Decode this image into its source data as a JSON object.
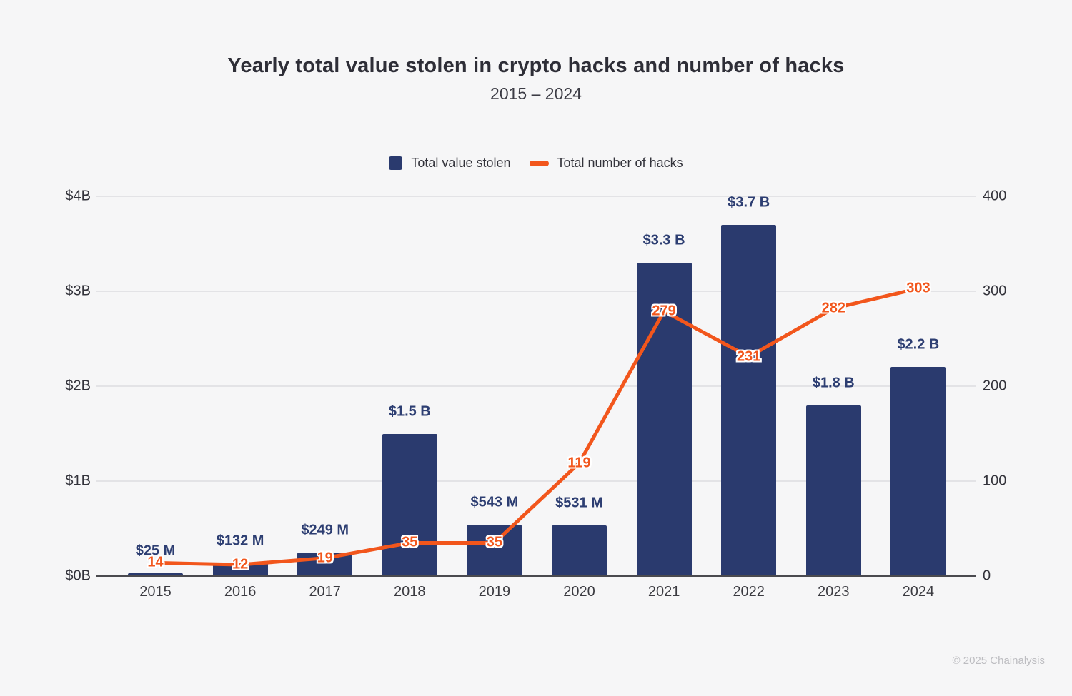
{
  "page": {
    "background": "#f6f6f7"
  },
  "header": {
    "title": "Yearly total value stolen in crypto hacks and number of hacks",
    "subtitle": "2015 – 2024"
  },
  "legend": {
    "items": [
      {
        "label": "Total value stolen",
        "swatch": "square",
        "color": "#2a3a6e"
      },
      {
        "label": "Total number of hacks",
        "swatch": "dash",
        "color": "#f2561c"
      }
    ]
  },
  "footer": {
    "credit": "© 2025 Chainalysis"
  },
  "colors": {
    "bar": "#2a3a6e",
    "bar_label": "#2d3e72",
    "line": "#f2561c",
    "line_label": "#f2561c",
    "gridline": "#e3e3e6",
    "baseline": "#4a4a4f"
  },
  "chart_data": {
    "type": "combo-bar-line",
    "title": "Yearly total value stolen in crypto hacks and number of hacks",
    "subtitle": "2015 – 2024",
    "categories": [
      "2015",
      "2016",
      "2017",
      "2018",
      "2019",
      "2020",
      "2021",
      "2022",
      "2023",
      "2024"
    ],
    "series": [
      {
        "name": "Total value stolen",
        "type": "bar",
        "axis": "left",
        "unit": "USD millions",
        "values": [
          25,
          132,
          249,
          1500,
          543,
          531,
          3300,
          3700,
          1800,
          2200
        ],
        "labels": [
          "$25 M",
          "$132 M",
          "$249 M",
          "$1.5 B",
          "$543 M",
          "$531 M",
          "$3.3 B",
          "$3.7 B",
          "$1.8 B",
          "$2.2 B"
        ],
        "color": "#2a3a6e"
      },
      {
        "name": "Total number of hacks",
        "type": "line",
        "axis": "right",
        "unit": "hacks",
        "values": [
          14,
          12,
          19,
          35,
          35,
          119,
          279,
          231,
          282,
          303
        ],
        "labels": [
          "14",
          "12",
          "19",
          "35",
          "35",
          "119",
          "279",
          "231",
          "282",
          "303"
        ],
        "color": "#f2561c"
      }
    ],
    "left_axis": {
      "ticks": [
        "$4B",
        "$3B",
        "$2B",
        "$1B",
        "$0B"
      ],
      "range": [
        0,
        4000
      ]
    },
    "right_axis": {
      "ticks": [
        "400",
        "300",
        "200",
        "100",
        "0"
      ],
      "range": [
        0,
        400
      ]
    },
    "grid": true,
    "legend_position": "top"
  }
}
